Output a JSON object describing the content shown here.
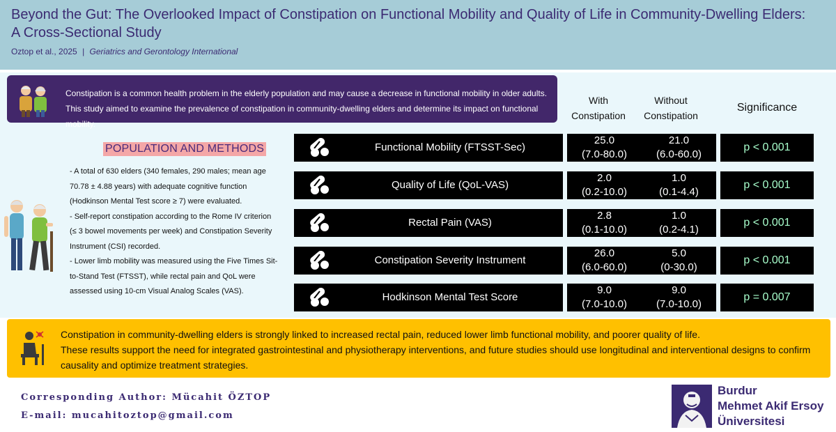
{
  "header": {
    "title_line1": "Beyond the Gut: The Overlooked Impact of Constipation on Functional Mobility and Quality of Life in Community-Dwelling Elders:",
    "title_line2": "A Cross-Sectional Study",
    "authors": "Oztop et al., 2025",
    "separator": "|",
    "journal": "Geriatrics and Gerontology International"
  },
  "intro": {
    "line1": "Constipation is a common health problem in the elderly population and may cause a decrease in functional mobility in older adults.",
    "line2": "This study aimed to examine the prevalence of constipation in community-dwelling elders and determine its impact on functional mobility.",
    "icon": "elderly-couple-icon"
  },
  "columns": {
    "with_l1": "With",
    "with_l2": "Constipation",
    "without_l1": "Without",
    "without_l2": "Constipation",
    "significance": "Significance"
  },
  "methods": {
    "title": "POPULATION AND METHODS",
    "lines": [
      "- A total of 630 elders (340 females, 290 males; mean age",
      "70.78 ± 4.88 years) with adequate cognitive function",
      "(Hodkinson Mental Test score ≥ 7) were evaluated.",
      "- Self-report constipation according to the Rome IV criterion",
      "(≤ 3 bowel movements per week) and  Constipation Severity",
      "Instrument (CSI) recorded.",
      "- Lower limb mobility was measured using the Five Times Sit-",
      "to-Stand Test (FTSST), while rectal pain and QoL were",
      "assessed using 10-cm Visual Analog Scales (VAS)."
    ],
    "icon": "elderly-walking-icon"
  },
  "results": [
    {
      "label": "Functional Mobility (FTSST-Sec)",
      "with_median": "25.0",
      "with_range": "(7.0-80.0)",
      "without_median": "21.0",
      "without_range": "(6.0-60.0)",
      "significance": "p < 0.001"
    },
    {
      "label": "Quality of Life (QoL-VAS)",
      "with_median": "2.0",
      "with_range": "(0.2-10.0)",
      "without_median": "1.0",
      "without_range": "(0.1-4.4)",
      "significance": "p < 0.001"
    },
    {
      "label": "Rectal Pain (VAS)",
      "with_median": "2.8",
      "with_range": "(0.1-10.0)",
      "without_median": "1.0",
      "without_range": "(0.2-4.1)",
      "significance": "p < 0.001"
    },
    {
      "label": "Constipation Severity Instrument",
      "with_median": "26.0",
      "with_range": "(6.0-60.0)",
      "without_median": "5.0",
      "without_range": "(0-30.0)",
      "significance": "p < 0.001"
    },
    {
      "label": "Hodkinson Mental Test Score",
      "with_median": "9.0",
      "with_range": "(7.0-10.0)",
      "without_median": "9.0",
      "without_range": "(7.0-10.0)",
      "significance": "p = 0.007"
    }
  ],
  "conclusion": {
    "line1": "Constipation in community-dwelling elders is strongly linked to increased rectal pain, reduced lower limb functional mobility, and poorer quality of life.",
    "line2": "These results support the need for integrated gastrointestinal and physiotherapy interventions, and future studies should use longitudinal and interventional designs to confirm",
    "line3": "causality and optimize treatment strategies.",
    "icon": "seated-elder-icon"
  },
  "footer": {
    "author": "Corresponding Author: Mücahit ÖZTOP",
    "email": "E-mail: mucahitoztop@gmail.com",
    "university_line1": "Burdur",
    "university_line2": "Mehmet Akif Ersoy",
    "university_line3": "Üniversitesi",
    "logo": "university-portrait-logo"
  },
  "colors": {
    "header_bg": "#a6ccd7",
    "title_text": "#3b2a72",
    "intro_bg": "#42276a",
    "methods_highlight": "#f4a7a7",
    "row_bg": "#000000",
    "significance_text": "#a8ffcc",
    "conclusion_bg": "#ffc000"
  }
}
